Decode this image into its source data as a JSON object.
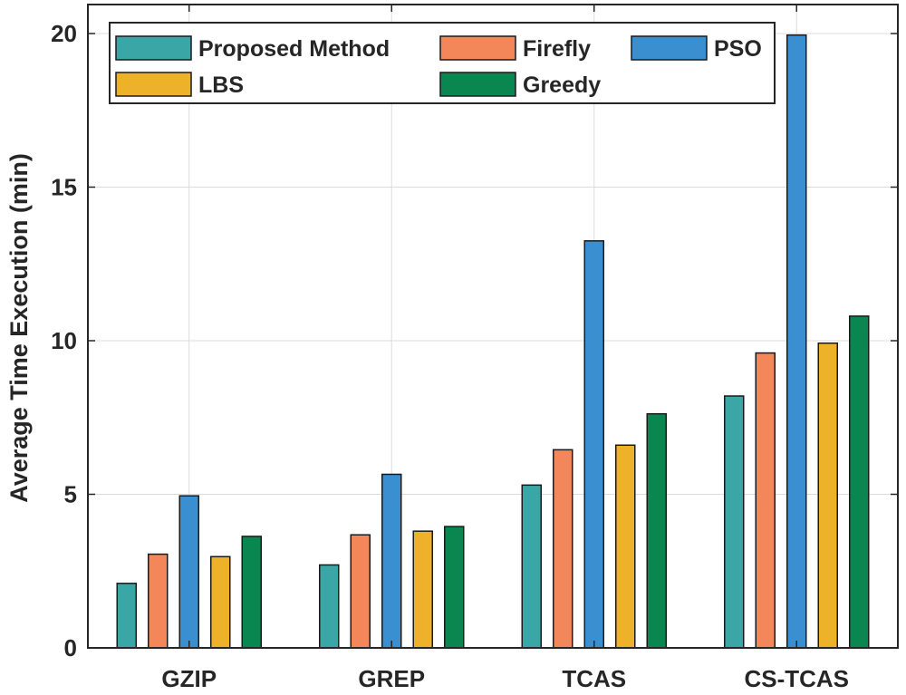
{
  "chart_data": {
    "type": "bar",
    "title": "",
    "xlabel": "",
    "ylabel": "Average Time Execution (min)",
    "categories": [
      "GZIP",
      "GREP",
      "TCAS",
      "CS-TCAS"
    ],
    "ylim": [
      0,
      20
    ],
    "yticks": [
      0,
      5,
      10,
      15,
      20
    ],
    "grid": true,
    "legend_position": "top",
    "series": [
      {
        "name": "Proposed Method",
        "color": "#3aa6a6",
        "values": [
          2.1,
          2.7,
          5.3,
          8.2
        ]
      },
      {
        "name": "Firefly",
        "color": "#f4875a",
        "values": [
          3.05,
          3.68,
          6.45,
          9.6
        ]
      },
      {
        "name": "PSO",
        "color": "#3a8fd0",
        "values": [
          4.95,
          5.65,
          13.25,
          19.95
        ]
      },
      {
        "name": "LBS",
        "color": "#eeb12a",
        "values": [
          2.97,
          3.8,
          6.6,
          9.92
        ]
      },
      {
        "name": "Greedy",
        "color": "#0a8651",
        "values": [
          3.63,
          3.95,
          7.62,
          10.8
        ]
      }
    ]
  }
}
